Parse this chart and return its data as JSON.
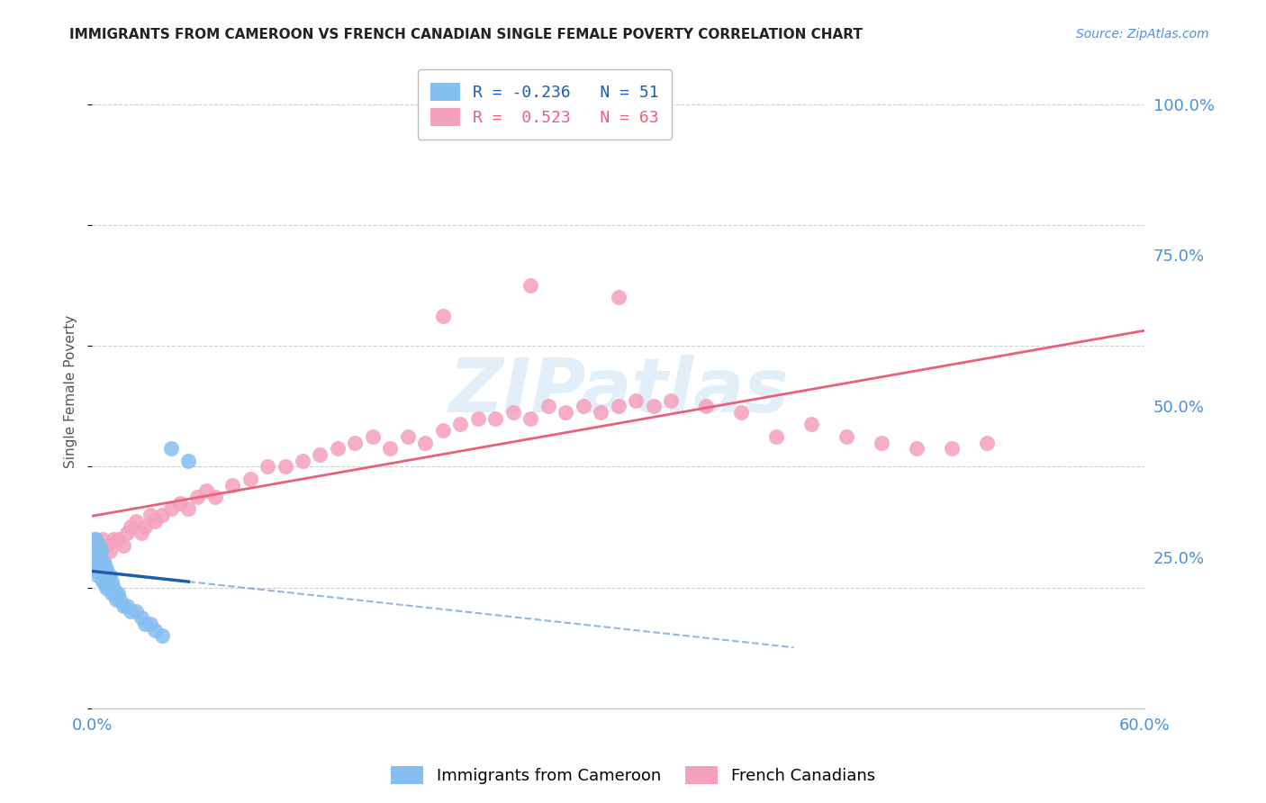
{
  "title": "IMMIGRANTS FROM CAMEROON VS FRENCH CANADIAN SINGLE FEMALE POVERTY CORRELATION CHART",
  "source": "Source: ZipAtlas.com",
  "ylabel": "Single Female Poverty",
  "xlim": [
    0.0,
    0.6
  ],
  "ylim": [
    0.0,
    1.05
  ],
  "yticks": [
    0.0,
    0.25,
    0.5,
    0.75,
    1.0
  ],
  "ytick_labels": [
    "",
    "25.0%",
    "50.0%",
    "75.0%",
    "100.0%"
  ],
  "xticks": [
    0.0,
    0.6
  ],
  "xtick_labels": [
    "0.0%",
    "60.0%"
  ],
  "legend_blue_label": "Immigrants from Cameroon",
  "legend_pink_label": "French Canadians",
  "R_blue": -0.236,
  "N_blue": 51,
  "R_pink": 0.523,
  "N_pink": 63,
  "blue_color": "#85bef0",
  "pink_color": "#f5a0bc",
  "blue_line_color": "#1a5faa",
  "pink_line_color": "#e8607a",
  "watermark": "ZIPatlas",
  "background_color": "#ffffff",
  "tick_label_color": "#4a90d9",
  "blue_scatter_x": [
    0.001,
    0.001,
    0.001,
    0.001,
    0.002,
    0.002,
    0.002,
    0.002,
    0.002,
    0.003,
    0.003,
    0.003,
    0.003,
    0.004,
    0.004,
    0.004,
    0.004,
    0.005,
    0.005,
    0.005,
    0.005,
    0.006,
    0.006,
    0.006,
    0.007,
    0.007,
    0.007,
    0.008,
    0.008,
    0.009,
    0.009,
    0.01,
    0.01,
    0.011,
    0.011,
    0.012,
    0.013,
    0.014,
    0.015,
    0.016,
    0.018,
    0.02,
    0.022,
    0.025,
    0.028,
    0.03,
    0.033,
    0.036,
    0.04,
    0.045,
    0.055
  ],
  "blue_scatter_y": [
    0.24,
    0.26,
    0.27,
    0.28,
    0.23,
    0.25,
    0.26,
    0.27,
    0.28,
    0.22,
    0.24,
    0.25,
    0.26,
    0.23,
    0.24,
    0.25,
    0.27,
    0.22,
    0.23,
    0.24,
    0.26,
    0.21,
    0.23,
    0.24,
    0.21,
    0.22,
    0.24,
    0.2,
    0.23,
    0.2,
    0.22,
    0.2,
    0.22,
    0.19,
    0.21,
    0.2,
    0.19,
    0.18,
    0.19,
    0.18,
    0.17,
    0.17,
    0.16,
    0.16,
    0.15,
    0.14,
    0.14,
    0.13,
    0.12,
    0.43,
    0.41
  ],
  "pink_scatter_x": [
    0.001,
    0.002,
    0.003,
    0.004,
    0.005,
    0.006,
    0.008,
    0.01,
    0.012,
    0.015,
    0.018,
    0.02,
    0.022,
    0.025,
    0.028,
    0.03,
    0.033,
    0.036,
    0.04,
    0.045,
    0.05,
    0.055,
    0.06,
    0.065,
    0.07,
    0.08,
    0.09,
    0.1,
    0.11,
    0.12,
    0.13,
    0.14,
    0.15,
    0.16,
    0.17,
    0.18,
    0.19,
    0.2,
    0.21,
    0.22,
    0.23,
    0.24,
    0.25,
    0.26,
    0.27,
    0.28,
    0.29,
    0.3,
    0.31,
    0.32,
    0.33,
    0.35,
    0.37,
    0.39,
    0.41,
    0.43,
    0.45,
    0.47,
    0.49,
    0.51,
    0.2,
    0.25,
    0.3
  ],
  "pink_scatter_y": [
    0.27,
    0.28,
    0.26,
    0.27,
    0.25,
    0.28,
    0.27,
    0.26,
    0.28,
    0.28,
    0.27,
    0.29,
    0.3,
    0.31,
    0.29,
    0.3,
    0.32,
    0.31,
    0.32,
    0.33,
    0.34,
    0.33,
    0.35,
    0.36,
    0.35,
    0.37,
    0.38,
    0.4,
    0.4,
    0.41,
    0.42,
    0.43,
    0.44,
    0.45,
    0.43,
    0.45,
    0.44,
    0.46,
    0.47,
    0.48,
    0.48,
    0.49,
    0.48,
    0.5,
    0.49,
    0.5,
    0.49,
    0.5,
    0.51,
    0.5,
    0.51,
    0.5,
    0.49,
    0.45,
    0.47,
    0.45,
    0.44,
    0.43,
    0.43,
    0.44,
    0.65,
    0.7,
    0.68
  ]
}
